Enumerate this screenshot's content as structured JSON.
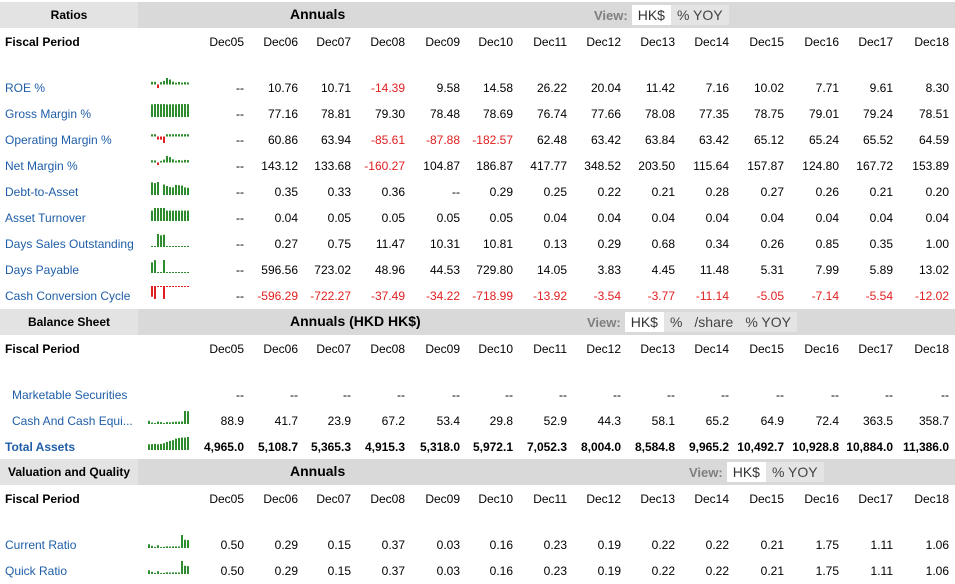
{
  "years": [
    "Dec05",
    "Dec06",
    "Dec07",
    "Dec08",
    "Dec09",
    "Dec10",
    "Dec11",
    "Dec12",
    "Dec13",
    "Dec14",
    "Dec15",
    "Dec16",
    "Dec17",
    "Dec18"
  ],
  "fiscal_period_label": "Fiscal Period",
  "colors": {
    "link": "#1f5ea8",
    "negative": "#e02020",
    "spark_green": "#2e8b2e",
    "spark_red": "#e02020"
  },
  "sections": {
    "ratios": {
      "label": "Ratios",
      "title": "Annuals",
      "view_label": "View:",
      "view_options": [
        "HK$",
        "% YOY"
      ],
      "view_active": "HK$",
      "rows": [
        {
          "label": "ROE %",
          "values": [
            "--",
            "10.76",
            "10.71",
            "-14.39",
            "9.58",
            "14.58",
            "26.22",
            "20.04",
            "11.42",
            "7.16",
            "10.02",
            "7.71",
            "9.61",
            "8.30"
          ]
        },
        {
          "label": "Gross Margin %",
          "values": [
            "--",
            "77.16",
            "78.81",
            "79.30",
            "78.48",
            "78.69",
            "76.74",
            "77.66",
            "78.08",
            "77.35",
            "78.75",
            "79.01",
            "79.24",
            "78.51"
          ]
        },
        {
          "label": "Operating Margin %",
          "values": [
            "--",
            "60.86",
            "63.94",
            "-85.61",
            "-87.88",
            "-182.57",
            "62.48",
            "63.42",
            "63.84",
            "63.42",
            "65.12",
            "65.24",
            "65.52",
            "64.59"
          ]
        },
        {
          "label": "Net Margin %",
          "values": [
            "--",
            "143.12",
            "133.68",
            "-160.27",
            "104.87",
            "186.87",
            "417.77",
            "348.52",
            "203.50",
            "115.64",
            "157.87",
            "124.80",
            "167.72",
            "153.89"
          ]
        },
        {
          "label": "Debt-to-Asset",
          "values": [
            "--",
            "0.35",
            "0.33",
            "0.36",
            "--",
            "0.29",
            "0.25",
            "0.22",
            "0.21",
            "0.28",
            "0.27",
            "0.26",
            "0.21",
            "0.20"
          ]
        },
        {
          "label": "Asset Turnover",
          "values": [
            "--",
            "0.04",
            "0.05",
            "0.05",
            "0.05",
            "0.05",
            "0.04",
            "0.04",
            "0.04",
            "0.04",
            "0.04",
            "0.04",
            "0.04",
            "0.04"
          ]
        },
        {
          "label": "Days Sales Outstanding",
          "values": [
            "--",
            "0.27",
            "0.75",
            "11.47",
            "10.31",
            "10.81",
            "0.13",
            "0.29",
            "0.68",
            "0.34",
            "0.26",
            "0.85",
            "0.35",
            "1.00"
          ]
        },
        {
          "label": "Days Payable",
          "values": [
            "--",
            "596.56",
            "723.02",
            "48.96",
            "44.53",
            "729.80",
            "14.05",
            "3.83",
            "4.45",
            "11.48",
            "5.31",
            "7.99",
            "5.89",
            "13.02"
          ]
        },
        {
          "label": "Cash Conversion Cycle",
          "values": [
            "--",
            "-596.29",
            "-722.27",
            "-37.49",
            "-34.22",
            "-718.99",
            "-13.92",
            "-3.54",
            "-3.77",
            "-11.14",
            "-5.05",
            "-7.14",
            "-5.54",
            "-12.02"
          ]
        }
      ]
    },
    "balance": {
      "label": "Balance Sheet",
      "title": "Annuals (HKD HK$)",
      "view_label": "View:",
      "view_options": [
        "HK$",
        "%",
        "/share",
        "% YOY"
      ],
      "view_active": "HK$",
      "rows": [
        {
          "label": "Marketable Securities",
          "values": [
            "--",
            "--",
            "--",
            "--",
            "--",
            "--",
            "--",
            "--",
            "--",
            "--",
            "--",
            "--",
            "--",
            "--"
          ]
        },
        {
          "label": "Cash And Cash Equi...",
          "values": [
            "88.9",
            "41.7",
            "23.9",
            "67.2",
            "53.4",
            "29.8",
            "52.9",
            "44.3",
            "58.1",
            "65.2",
            "64.9",
            "72.4",
            "363.5",
            "358.7"
          ]
        },
        {
          "label": "Total Assets",
          "values": [
            "4,965.0",
            "5,108.7",
            "5,365.3",
            "4,915.3",
            "5,318.0",
            "5,972.1",
            "7,052.3",
            "8,004.0",
            "8,584.8",
            "9,965.2",
            "10,492.7",
            "10,928.8",
            "10,884.0",
            "11,386.0"
          ]
        }
      ]
    },
    "valuation": {
      "label": "Valuation and Quality",
      "title": "Annuals",
      "view_label": "View:",
      "view_options": [
        "HK$",
        "% YOY"
      ],
      "view_active": "HK$",
      "rows": [
        {
          "label": "Current Ratio",
          "values": [
            "0.50",
            "0.29",
            "0.15",
            "0.37",
            "0.03",
            "0.16",
            "0.23",
            "0.19",
            "0.22",
            "0.22",
            "0.21",
            "1.75",
            "1.11",
            "1.06"
          ]
        },
        {
          "label": "Quick Ratio",
          "values": [
            "0.50",
            "0.29",
            "0.15",
            "0.37",
            "0.03",
            "0.16",
            "0.23",
            "0.19",
            "0.22",
            "0.22",
            "0.21",
            "1.75",
            "1.11",
            "1.06"
          ]
        }
      ]
    }
  }
}
